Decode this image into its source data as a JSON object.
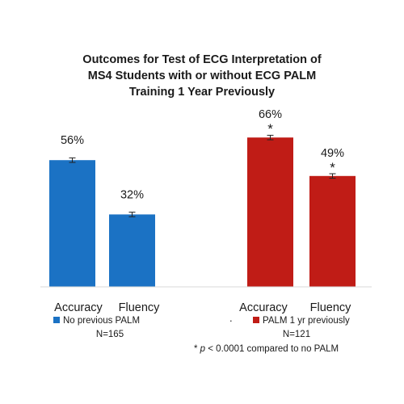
{
  "chart_data": {
    "type": "bar",
    "title_lines": [
      "Outcomes for Test of ECG Interpretation of",
      "MS4 Students with or without ECG PALM",
      "Training 1 Year Previously"
    ],
    "xlabel": "",
    "ylabel": "",
    "ylim": [
      0,
      100
    ],
    "grid": false,
    "colors": {
      "no_palm": "#1b72c4",
      "palm": "#c01c16",
      "error_bar": "#222222"
    },
    "groups": [
      {
        "legend": "No previous PALM",
        "n_label": "N=165",
        "color_key": "no_palm",
        "bars": [
          {
            "category": "Accuracy",
            "value": 56,
            "label": "56%",
            "error": 1,
            "star": ""
          },
          {
            "category": "Fluency",
            "value": 32,
            "label": "32%",
            "error": 1,
            "star": ""
          }
        ]
      },
      {
        "legend": "PALM 1 yr previously",
        "n_label": "N=121",
        "color_key": "palm",
        "bars": [
          {
            "category": "Accuracy",
            "value": 66,
            "label": "66%",
            "error": 1,
            "star": "*"
          },
          {
            "category": "Fluency",
            "value": 49,
            "label": "49%",
            "error": 1,
            "star": "*"
          }
        ]
      }
    ],
    "stray_mark": ".",
    "footnote": {
      "prefix": "* ",
      "italic": "p",
      "suffix": " < 0.0001 compared to no PALM"
    }
  }
}
